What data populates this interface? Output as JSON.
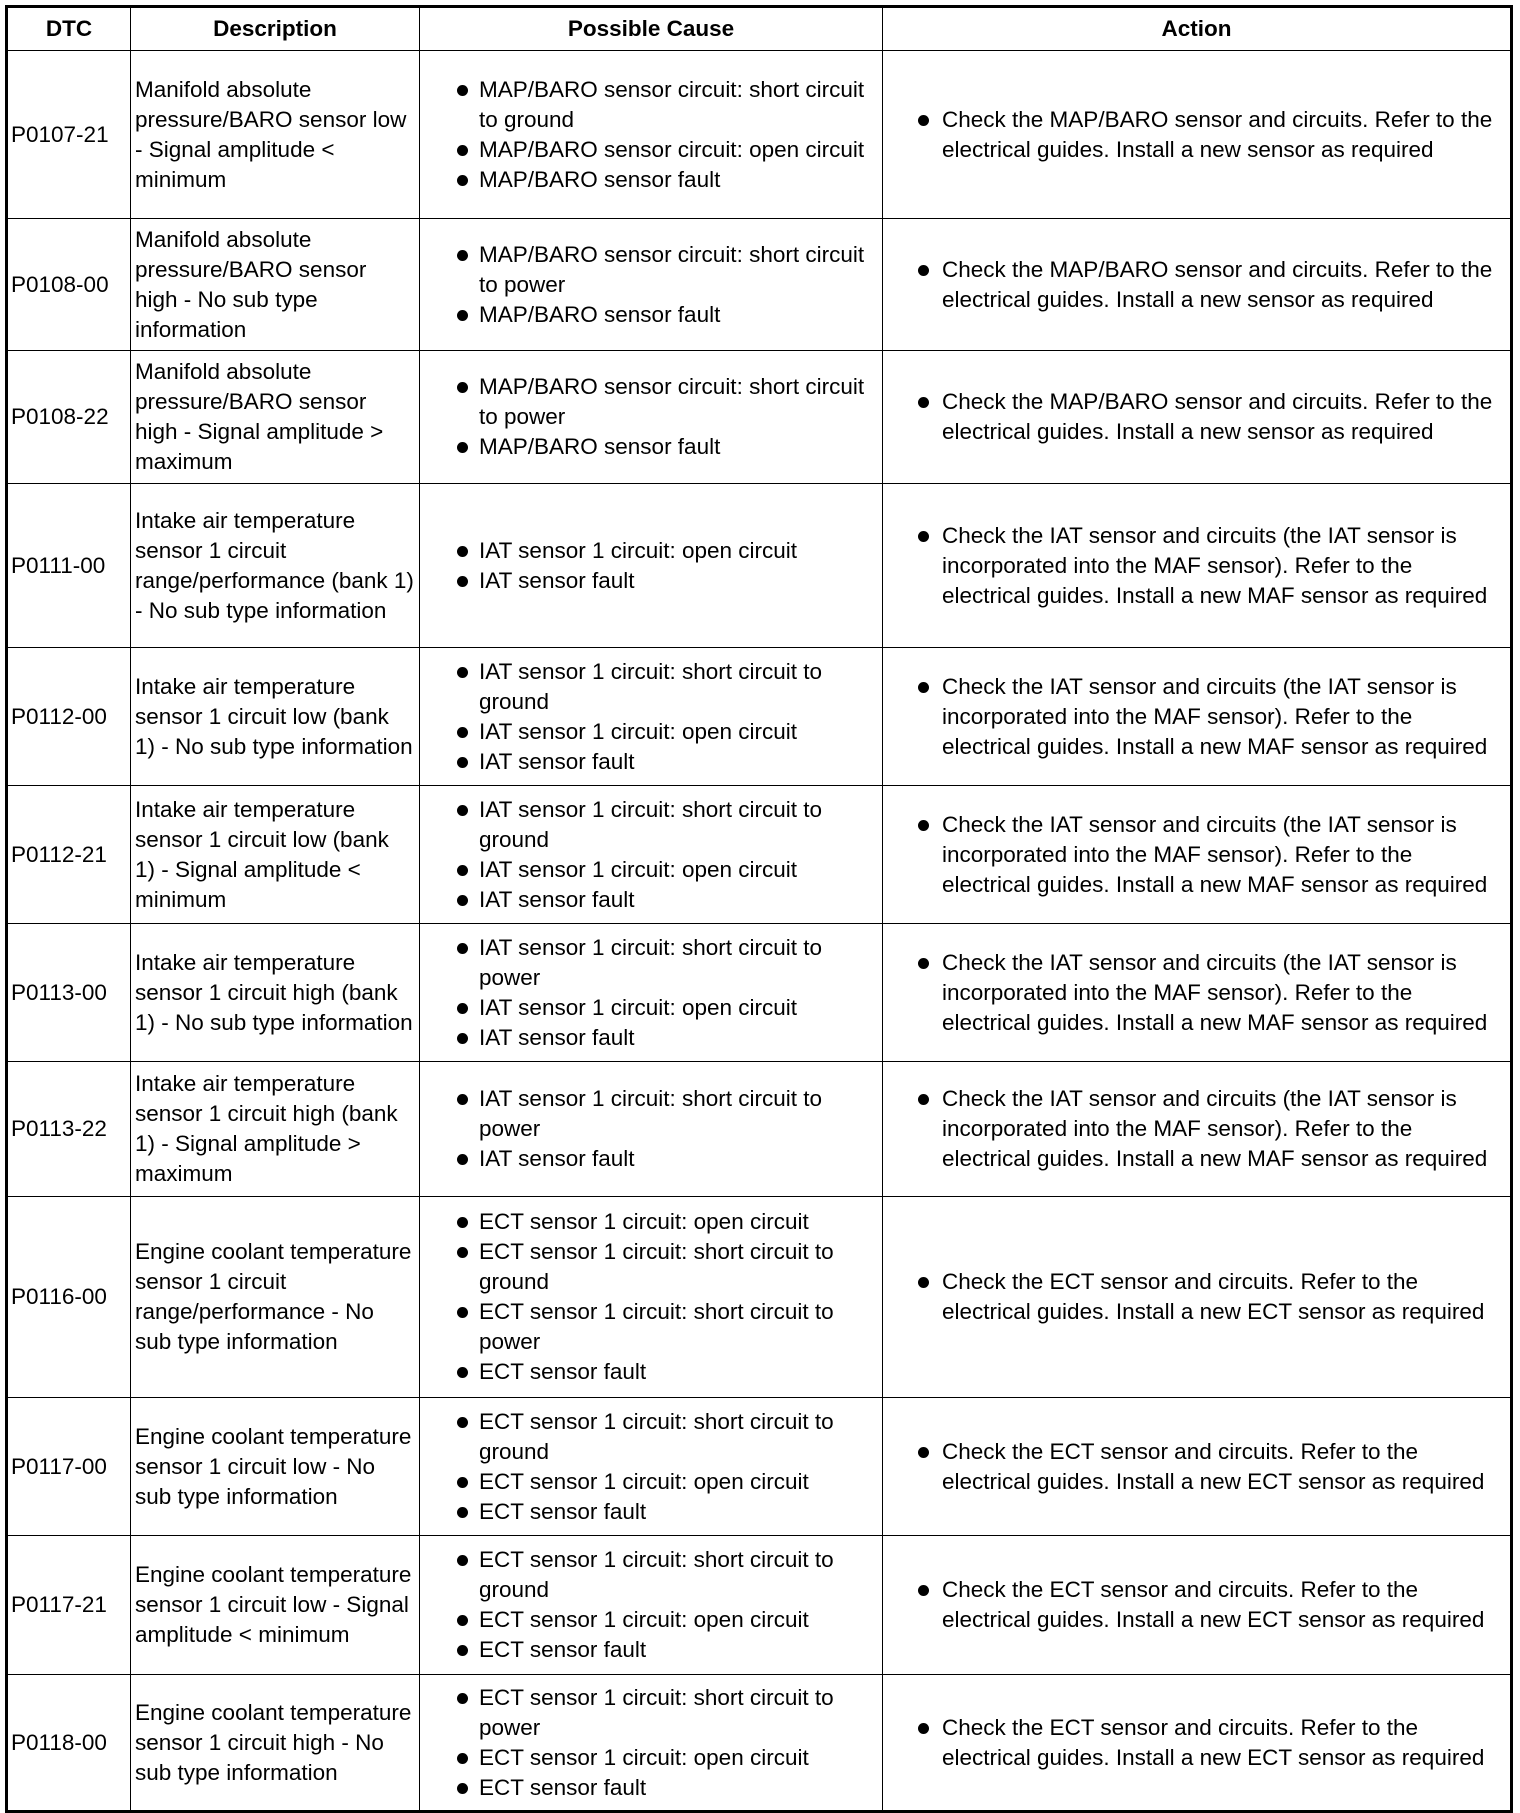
{
  "headers": [
    "DTC",
    "Description",
    "Possible Cause",
    "Action"
  ],
  "rows": [
    {
      "dtc": "P0107-21",
      "description": "Manifold absolute pressure/BARO sensor low - Signal amplitude < minimum",
      "causes": [
        "MAP/BARO sensor circuit: short circuit to ground",
        "MAP/BARO sensor circuit: open circuit",
        "MAP/BARO sensor fault"
      ],
      "action": "Check the MAP/BARO sensor and circuits. Refer to the electrical guides. Install a new sensor as required"
    },
    {
      "dtc": "P0108-00",
      "description": "Manifold absolute pressure/BARO sensor high - No sub type information",
      "causes": [
        "MAP/BARO sensor circuit: short circuit to power",
        "MAP/BARO sensor fault"
      ],
      "action": "Check the MAP/BARO sensor and circuits. Refer to the electrical guides. Install a new sensor as required"
    },
    {
      "dtc": "P0108-22",
      "description": "Manifold absolute pressure/BARO sensor high - Signal amplitude > maximum",
      "causes": [
        "MAP/BARO sensor circuit: short circuit to power",
        "MAP/BARO sensor fault"
      ],
      "action": "Check the MAP/BARO sensor and circuits. Refer to the electrical guides. Install a new sensor as required"
    },
    {
      "dtc": "P0111-00",
      "description": "Intake air temperature sensor 1 circuit range/performance (bank 1) - No sub type information",
      "causes": [
        "IAT sensor 1 circuit: open circuit",
        "IAT sensor fault"
      ],
      "action": "Check the IAT sensor and circuits (the IAT sensor is incorporated into the MAF sensor). Refer to the electrical guides. Install a new MAF sensor as required"
    },
    {
      "dtc": "P0112-00",
      "description": "Intake air temperature sensor 1 circuit low (bank 1) - No sub type information",
      "causes": [
        "IAT sensor 1 circuit: short circuit to ground",
        "IAT sensor 1 circuit: open circuit",
        "IAT sensor fault"
      ],
      "action": "Check the IAT sensor and circuits (the IAT sensor is incorporated into the MAF sensor). Refer to the electrical guides. Install a new MAF sensor as required"
    },
    {
      "dtc": "P0112-21",
      "description": "Intake air temperature sensor 1 circuit low (bank 1) - Signal amplitude < minimum",
      "causes": [
        "IAT sensor 1 circuit: short circuit to ground",
        "IAT sensor 1 circuit: open circuit",
        "IAT sensor fault"
      ],
      "action": "Check the IAT sensor and circuits (the IAT sensor is incorporated into the MAF sensor). Refer to the electrical guides. Install a new MAF sensor as required"
    },
    {
      "dtc": "P0113-00",
      "description": "Intake air temperature sensor 1 circuit high (bank 1) - No sub type information",
      "causes": [
        "IAT sensor 1 circuit: short circuit to power",
        "IAT sensor 1 circuit: open circuit",
        "IAT sensor fault"
      ],
      "action": "Check the IAT sensor and circuits (the IAT sensor is incorporated into the MAF sensor). Refer to the electrical guides. Install a new MAF sensor as required"
    },
    {
      "dtc": "P0113-22",
      "description": "Intake air temperature sensor 1 circuit high (bank 1) - Signal amplitude > maximum",
      "causes": [
        "IAT sensor 1 circuit: short circuit to power",
        "IAT sensor fault"
      ],
      "action": "Check the IAT sensor and circuits (the IAT sensor is incorporated into the MAF sensor). Refer to the electrical guides. Install a new MAF sensor as required"
    },
    {
      "dtc": "P0116-00",
      "description": "Engine coolant temperature sensor 1 circuit range/performance - No sub type information",
      "causes": [
        "ECT sensor 1 circuit: open circuit",
        "ECT sensor 1 circuit: short circuit to ground",
        "ECT sensor 1 circuit: short circuit to power",
        "ECT sensor fault"
      ],
      "action": "Check the ECT sensor and circuits. Refer to the electrical guides. Install a new ECT sensor as required"
    },
    {
      "dtc": "P0117-00",
      "description": "Engine coolant temperature sensor 1 circuit low - No sub type information",
      "causes": [
        "ECT sensor 1 circuit: short circuit to ground",
        "ECT sensor 1 circuit: open circuit",
        "ECT sensor fault"
      ],
      "action": "Check the ECT sensor and circuits. Refer to the electrical guides. Install a new ECT sensor as required"
    },
    {
      "dtc": "P0117-21",
      "description": "Engine coolant temperature sensor 1 circuit low - Signal amplitude < minimum",
      "causes": [
        "ECT sensor 1 circuit: short circuit to ground",
        "ECT sensor 1 circuit: open circuit",
        "ECT sensor fault"
      ],
      "action": "Check the ECT sensor and circuits. Refer to the electrical guides. Install a new ECT sensor as required"
    },
    {
      "dtc": "P0118-00",
      "description": "Engine coolant temperature sensor 1 circuit high - No sub type information",
      "causes": [
        "ECT sensor 1 circuit: short circuit to power",
        "ECT sensor 1 circuit: open circuit",
        "ECT sensor fault"
      ],
      "action": "Check the ECT sensor and circuits. Refer to the electrical guides. Install a new ECT sensor as required"
    }
  ]
}
